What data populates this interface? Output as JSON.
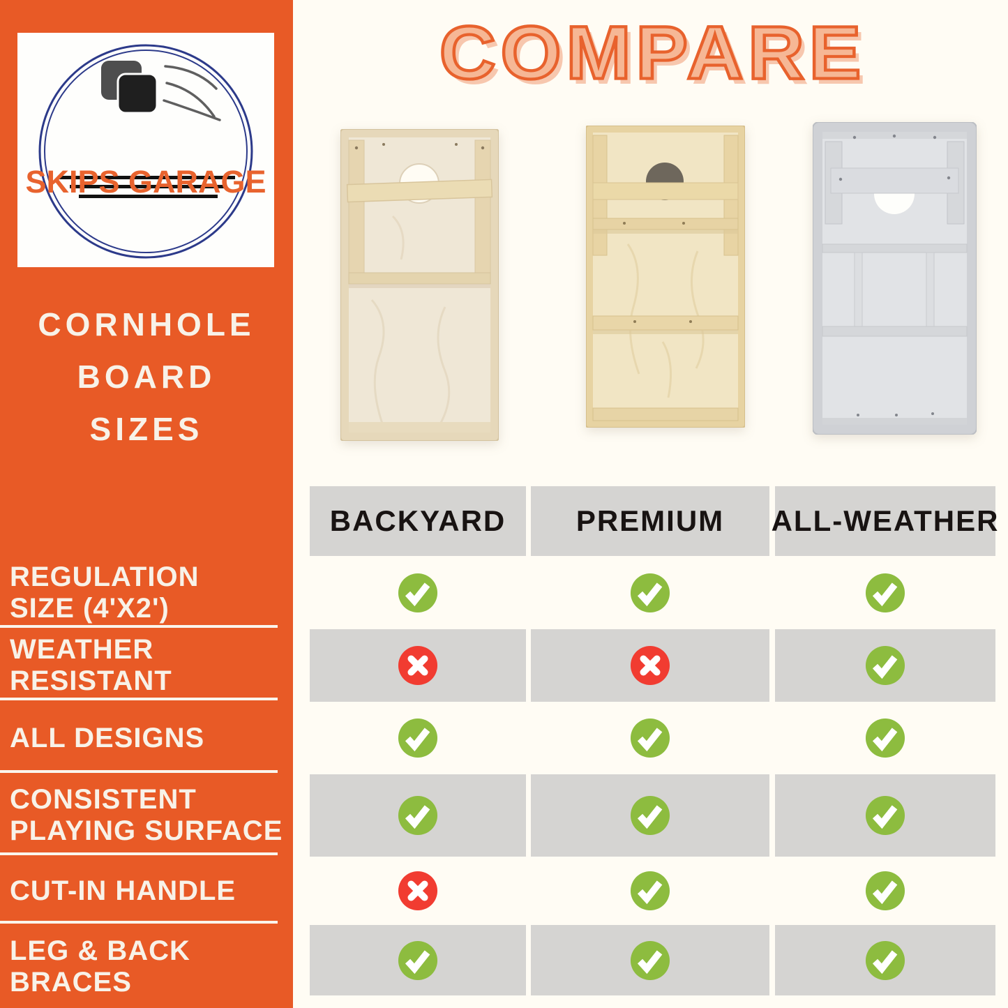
{
  "brand": {
    "name": "SKIPS GARAGE"
  },
  "sidebar": {
    "title_lines": [
      "CORNHOLE",
      "BOARD",
      "SIZES"
    ],
    "features": [
      {
        "lines": [
          "REGULATION",
          "SIZE (4'X2')"
        ]
      },
      {
        "lines": [
          "WEATHER",
          "RESISTANT"
        ]
      },
      {
        "lines": [
          "ALL DESIGNS"
        ]
      },
      {
        "lines": [
          "CONSISTENT",
          "PLAYING SURFACE"
        ]
      },
      {
        "lines": [
          "CUT-IN HANDLE"
        ]
      },
      {
        "lines": [
          "LEG & BACK",
          "BRACES"
        ]
      }
    ]
  },
  "main": {
    "title": "COMPARE",
    "columns": [
      "BACKYARD",
      "PREMIUM",
      "ALL-WEATHER"
    ],
    "boards": [
      {
        "name": "backyard-board-photo"
      },
      {
        "name": "premium-board-photo"
      },
      {
        "name": "all-weather-board-photo"
      }
    ],
    "rows": [
      {
        "feature": "REGULATION SIZE (4'X2')",
        "values": [
          "yes",
          "yes",
          "yes"
        ]
      },
      {
        "feature": "WEATHER RESISTANT",
        "values": [
          "no",
          "no",
          "yes"
        ]
      },
      {
        "feature": "ALL DESIGNS",
        "values": [
          "yes",
          "yes",
          "yes"
        ]
      },
      {
        "feature": "CONSISTENT PLAYING SURFACE",
        "values": [
          "yes",
          "yes",
          "yes"
        ]
      },
      {
        "feature": "CUT-IN HANDLE",
        "values": [
          "no",
          "yes",
          "yes"
        ]
      },
      {
        "feature": "LEG & BACK BRACES",
        "values": [
          "yes",
          "yes",
          "yes"
        ]
      }
    ]
  },
  "icons": {
    "check": {
      "name": "check-icon",
      "glyph": "✓",
      "color": "#8DBC3F"
    },
    "x": {
      "name": "x-icon",
      "glyph": "✕",
      "color": "#F13C31"
    }
  },
  "colors": {
    "sidebar_orange": "#E85A26",
    "background_cream": "#FFFCF4",
    "sidebar_text_cream": "#F8F2E8",
    "table_cell_gray": "#D5D4D2",
    "header_text": "#181312",
    "title_fill": "#F6B795",
    "title_outline": "#E8622D",
    "logo_navy": "#2C3A8A",
    "logo_orange": "#E8632E"
  }
}
